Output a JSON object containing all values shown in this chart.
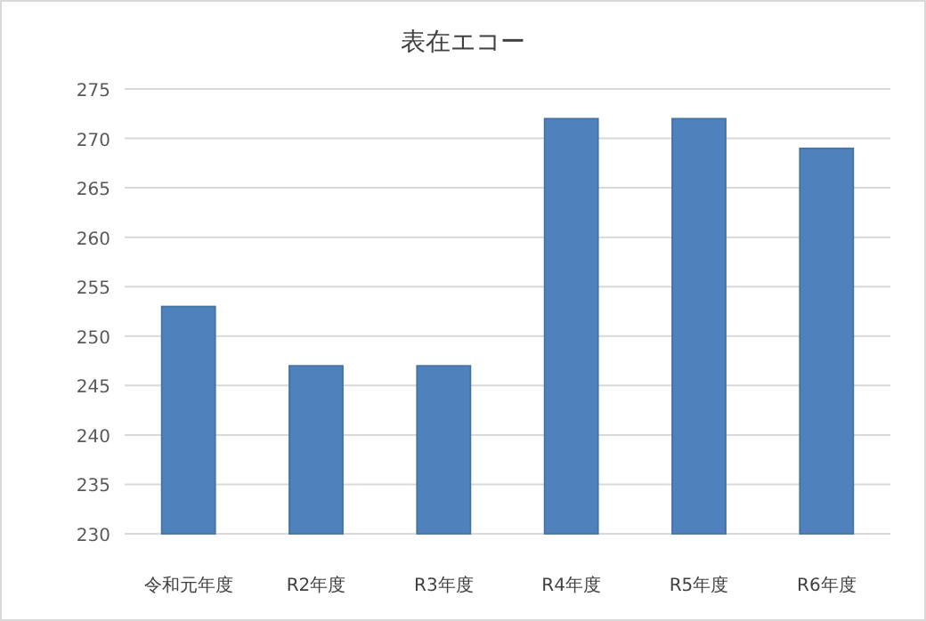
{
  "chart_data": {
    "type": "bar",
    "title": "表在エコー",
    "categories": [
      "令和元年度",
      "R2年度",
      "R3年度",
      "R4年度",
      "R5年度",
      "R6年度"
    ],
    "values": [
      253,
      247,
      247,
      272,
      272,
      269
    ],
    "color": "#4f81bd",
    "ylim": [
      230,
      275
    ],
    "yticks": [
      230,
      235,
      240,
      245,
      250,
      255,
      260,
      265,
      270,
      275
    ],
    "grid": "y"
  }
}
